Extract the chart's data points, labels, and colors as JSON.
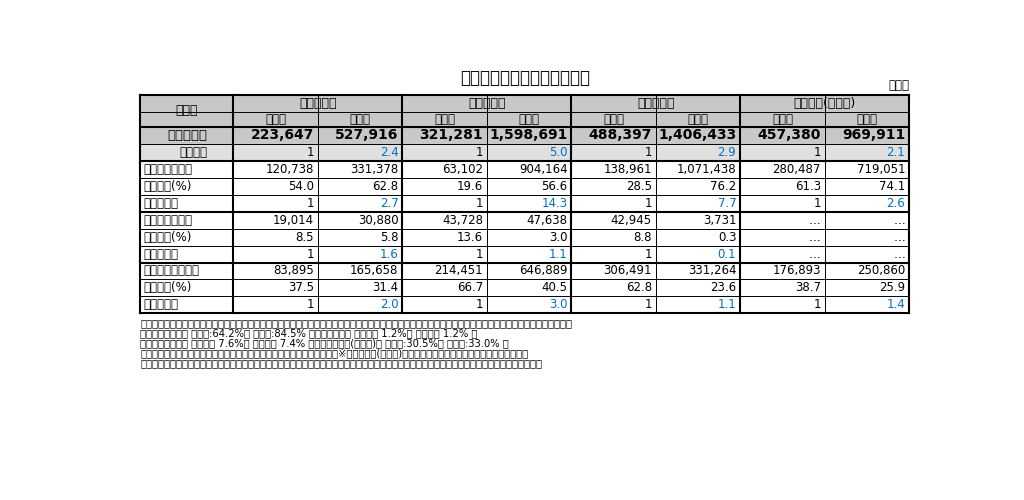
{
  "title": "表１　学校種別の学習費総額",
  "yen_label": "（円）",
  "bg_color": "#ffffff",
  "header_bg": "#c8c8c8",
  "total_row_bg": "#c8c8c8",
  "ratio_row_bg": "#e0e0e0",
  "rows": [
    {
      "label": "学習費総額",
      "values": [
        "223,647",
        "527,916",
        "321,281",
        "1,598,691",
        "488,397",
        "1,406,433",
        "457,380",
        "969,911"
      ],
      "style": "total"
    },
    {
      "label": "公私比率",
      "values": [
        "1",
        "2.4",
        "1",
        "5.0",
        "1",
        "2.9",
        "1",
        "2.1"
      ],
      "style": "ratio"
    },
    {
      "label": "うち学校教育費",
      "values": [
        "120,738",
        "331,378",
        "63,102",
        "904,164",
        "138,961",
        "1,071,438",
        "280,487",
        "719,051"
      ],
      "style": "section"
    },
    {
      "label": "　構成比(%)",
      "values": [
        "54.0",
        "62.8",
        "19.6",
        "56.6",
        "28.5",
        "76.2",
        "61.3",
        "74.1"
      ],
      "style": "sub"
    },
    {
      "label": "　公私比率",
      "values": [
        "1",
        "2.7",
        "1",
        "14.3",
        "1",
        "7.7",
        "1",
        "2.6"
      ],
      "style": "subratio"
    },
    {
      "label": "うち学校給食費",
      "values": [
        "19,014",
        "30,880",
        "43,728",
        "47,638",
        "42,945",
        "3,731",
        "…",
        "…"
      ],
      "style": "section"
    },
    {
      "label": "　構成比(%)",
      "values": [
        "8.5",
        "5.8",
        "13.6",
        "3.0",
        "8.8",
        "0.3",
        "…",
        "…"
      ],
      "style": "sub"
    },
    {
      "label": "　公私比率",
      "values": [
        "1",
        "1.6",
        "1",
        "1.1",
        "1",
        "0.1",
        "…",
        "…"
      ],
      "style": "subratio"
    },
    {
      "label": "うち学校外活動費",
      "values": [
        "83,895",
        "165,658",
        "214,451",
        "646,889",
        "306,491",
        "331,264",
        "176,893",
        "250,860"
      ],
      "style": "section"
    },
    {
      "label": "　構成比(%)",
      "values": [
        "37.5",
        "31.4",
        "66.7",
        "40.5",
        "62.8",
        "23.6",
        "38.7",
        "25.9"
      ],
      "style": "sub"
    },
    {
      "label": "　公私比率",
      "values": [
        "1",
        "2.0",
        "1",
        "3.0",
        "1",
        "1.1",
        "1",
        "1.4"
      ],
      "style": "subratio"
    }
  ],
  "footnote_lines": [
    "（参考）公立・私立学校総数に占める私立学校の割合，及び公立・私立学校に通う全幼児・児童・生徒数全体に占める私立学校に通う者の割合（平成３０年度）",
    "　　　　幼稚園（ 学校数:64.2%　 園児数:84.5% ）　　小学校（ 学校数： 1.2%　 児童数： 1.2% ）",
    "　　　　中学校（ 学校数： 7.6%　 生徒数： 7.4% ）　　高等学校(全日制)（ 学校数:30.5%　 生徒数:33.0% ）",
    "　　　　　　　　　　　　　　　　　　　　　　　　　　　　　　　　　※　高等学校(全日制)の生徒は，本科生に占める私立の割合である。",
    "　　　　　　　　　　　　　　　　　　　　　　　　　　　　　　　　　（資料）文部科学省「平成３０年度学校基本統計（学校基本調査報告書）」"
  ]
}
